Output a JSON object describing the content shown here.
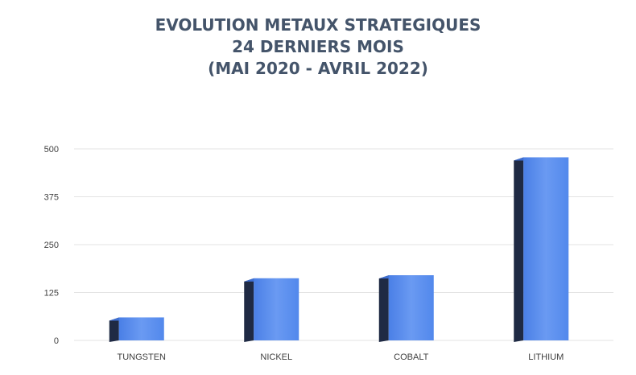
{
  "chart_data": {
    "type": "bar",
    "title": [
      "EVOLUTION METAUX STRATEGIQUES",
      "24 DERNIERS MOIS",
      "(MAI 2020 - AVRIL 2022)"
    ],
    "categories": [
      "TUNGSTEN",
      "NICKEL",
      "COBALT",
      "LITHIUM"
    ],
    "values": [
      60,
      162,
      170,
      478
    ],
    "ylim": [
      0,
      500
    ],
    "yticks": [
      0,
      125,
      250,
      375,
      500
    ],
    "grid": true,
    "legend": "none",
    "colors": {
      "bar_front": "#5b8def",
      "bar_side": "#1f2a44",
      "bar_top": "#3f6fd1",
      "grid": "#e3e3e3",
      "title": "#44546a"
    }
  }
}
